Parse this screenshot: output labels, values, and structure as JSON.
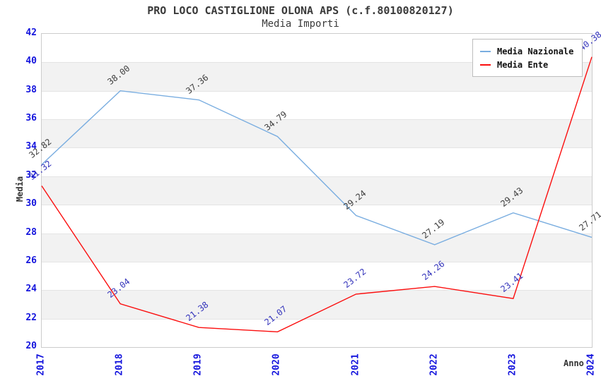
{
  "title": "PRO LOCO CASTIGLIONE OLONA APS (c.f.80100820127)",
  "subtitle": "Media Importi",
  "axes": {
    "x_label": "Anno",
    "y_label": "Media",
    "y_ticks": [
      42,
      40,
      38,
      36,
      34,
      32,
      30,
      28,
      26,
      24,
      22,
      20
    ],
    "x_ticks": [
      "2017",
      "2018",
      "2019",
      "2020",
      "2021",
      "2022",
      "2023",
      "2024"
    ]
  },
  "colors": {
    "axis_tick_text": "#1414dd",
    "band_gray": "#f2f2f2",
    "gridline": "#e4e4e4",
    "plot_border": "#cccccc",
    "title_text": "#3a3a3a"
  },
  "chart_data": {
    "type": "line",
    "title": "PRO LOCO CASTIGLIONE OLONA APS (c.f.80100820127)",
    "subtitle": "Media Importi",
    "xlabel": "Anno",
    "ylabel": "Media",
    "x": [
      "2017",
      "2018",
      "2019",
      "2020",
      "2021",
      "2022",
      "2023",
      "2024"
    ],
    "ylim": [
      20,
      42
    ],
    "ytick_step": 2,
    "grid": true,
    "legend_position": "top-right",
    "series": [
      {
        "name": "Media Nazionale",
        "color": "#79ade0",
        "label_color": "#3f3f3f",
        "values": [
          32.82,
          38.0,
          37.36,
          34.79,
          29.24,
          27.19,
          29.43,
          27.71
        ]
      },
      {
        "name": "Media Ente",
        "color": "#fb0e0e",
        "label_color": "#3434bb",
        "values": [
          31.32,
          23.04,
          21.38,
          21.07,
          23.72,
          24.26,
          23.41,
          40.38
        ]
      }
    ]
  }
}
